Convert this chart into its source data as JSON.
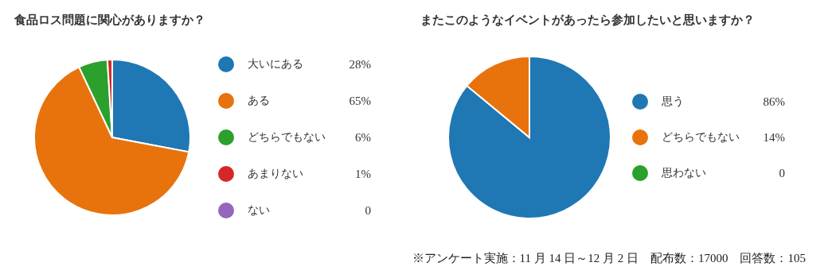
{
  "chart_data": [
    {
      "type": "pie",
      "title": "食品ロス問題に関心がありますか？",
      "categories": [
        "大いにある",
        "ある",
        "どちらでもない",
        "あまりない",
        "ない"
      ],
      "values": [
        28,
        65,
        6,
        1,
        0
      ],
      "value_labels": [
        "28%",
        "65%",
        "6%",
        "1%",
        "0"
      ],
      "colors": [
        "#1f77b4",
        "#e8730c",
        "#2ca02c",
        "#d62728",
        "#9467bd"
      ],
      "legend": "right"
    },
    {
      "type": "pie",
      "title": "またこのようなイベントがあったら参加したいと思いますか？",
      "categories": [
        "思う",
        "どちらでもない",
        "思わない"
      ],
      "values": [
        86,
        14,
        0
      ],
      "value_labels": [
        "86%",
        "14%",
        "0"
      ],
      "colors": [
        "#1f77b4",
        "#e8730c",
        "#2ca02c"
      ],
      "legend": "right",
      "annotations": [
        "※アンケート実施：11 月 14 日～12 月 2 日　配布数：17000　回答数：105"
      ]
    }
  ]
}
